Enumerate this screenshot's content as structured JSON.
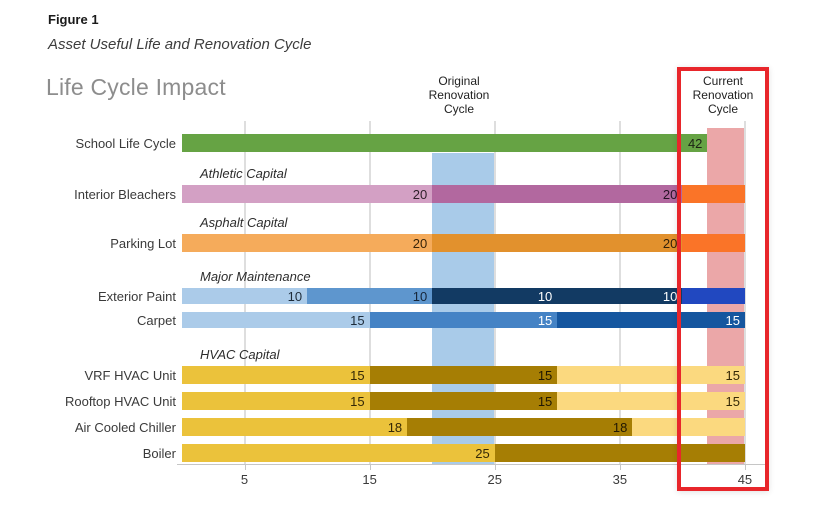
{
  "figure": {
    "label": "Figure 1",
    "caption": "Asset Useful Life and Renovation Cycle"
  },
  "chart": {
    "title": "Life Cycle Impact",
    "original_cycle_label": "Original Renovation Cycle",
    "current_cycle_label": "Current Renovation Cycle"
  },
  "chart_data": {
    "type": "bar",
    "orientation": "horizontal",
    "title": "Life Cycle Impact",
    "xlim": [
      0,
      47
    ],
    "x_ticks": [
      5,
      15,
      25,
      35,
      45
    ],
    "grid": true,
    "bands": [
      {
        "id": "original",
        "name": "original-renovation-cycle-band",
        "label": "Original Renovation Cycle",
        "from": 20,
        "to": 25,
        "color": "#a9cbe9"
      },
      {
        "id": "current",
        "name": "current-renovation-cycle-band",
        "label": "Current Renovation Cycle",
        "from": 42,
        "to": 45,
        "color": "#eba7a8"
      }
    ],
    "highlight_box": {
      "label": "Current Renovation Cycle",
      "color": "#e8262b"
    },
    "rows": [
      {
        "label": "School Life Cycle",
        "segments": [
          {
            "value": 42,
            "label": "42",
            "color": "#66a344",
            "text": "#1c2415"
          }
        ]
      },
      {
        "label": "Interior Bleachers",
        "group": "Athletic Capital",
        "segments": [
          {
            "value": 20,
            "label": "20",
            "color": "#d3a0c4",
            "text": "#30202b"
          },
          {
            "value": 20,
            "label": "20",
            "color": "#b2689f",
            "text": "#241223"
          },
          {
            "value": 5,
            "label": "",
            "color": "#fa7428",
            "text": "#262626"
          }
        ]
      },
      {
        "label": "Parking Lot",
        "group": "Asphalt Capital",
        "segments": [
          {
            "value": 20,
            "label": "20",
            "color": "#f5ab5b",
            "text": "#38240a"
          },
          {
            "value": 20,
            "label": "20",
            "color": "#e2912d",
            "text": "#33200a"
          },
          {
            "value": 5,
            "label": "",
            "color": "#fa7428",
            "text": "#262626"
          }
        ]
      },
      {
        "label": "Exterior Paint",
        "group": "Major Maintenance",
        "segments": [
          {
            "value": 10,
            "label": "10",
            "color": "#abcbe9",
            "text": "#1e2c3a"
          },
          {
            "value": 10,
            "label": "10",
            "color": "#5e96ce",
            "text": "#16263a"
          },
          {
            "value": 10,
            "label": "10",
            "color": "#123a63",
            "text": "#ffffff"
          },
          {
            "value": 10,
            "label": "10",
            "color": "#123a63",
            "text": "#ffffff"
          },
          {
            "value": 5,
            "label": "",
            "color": "#2148c0",
            "text": "#ffffff"
          }
        ]
      },
      {
        "label": "Carpet",
        "segments": [
          {
            "value": 15,
            "label": "15",
            "color": "#abcbe9",
            "text": "#1e2c3a"
          },
          {
            "value": 15,
            "label": "15",
            "color": "#4583c5",
            "text": "#ffffff"
          },
          {
            "value": 15,
            "label": "15",
            "color": "#15569f",
            "text": "#ffffff"
          }
        ]
      },
      {
        "label": "VRF HVAC Unit",
        "group": "HVAC Capital",
        "segments": [
          {
            "value": 15,
            "label": "15",
            "color": "#ebc23b",
            "text": "#342806"
          },
          {
            "value": 15,
            "label": "15",
            "color": "#a67e04",
            "text": "#201803"
          },
          {
            "value": 15,
            "label": "15",
            "color": "#fbd97f",
            "text": "#342806"
          }
        ]
      },
      {
        "label": "Rooftop HVAC Unit",
        "segments": [
          {
            "value": 15,
            "label": "15",
            "color": "#ebc23b",
            "text": "#342806"
          },
          {
            "value": 15,
            "label": "15",
            "color": "#a67e04",
            "text": "#201803"
          },
          {
            "value": 15,
            "label": "15",
            "color": "#fbd97f",
            "text": "#342806"
          }
        ]
      },
      {
        "label": "Air Cooled Chiller",
        "segments": [
          {
            "value": 18,
            "label": "18",
            "color": "#ebc23b",
            "text": "#342806"
          },
          {
            "value": 18,
            "label": "18",
            "color": "#a67e04",
            "text": "#201803"
          },
          {
            "value": 9,
            "label": "",
            "color": "#fbd97f",
            "text": "#342806"
          }
        ]
      },
      {
        "label": "Boiler",
        "segments": [
          {
            "value": 25,
            "label": "25",
            "color": "#ebc23b",
            "text": "#342806"
          },
          {
            "value": 20,
            "label": "",
            "color": "#a67e04",
            "text": "#201803"
          }
        ]
      }
    ]
  }
}
